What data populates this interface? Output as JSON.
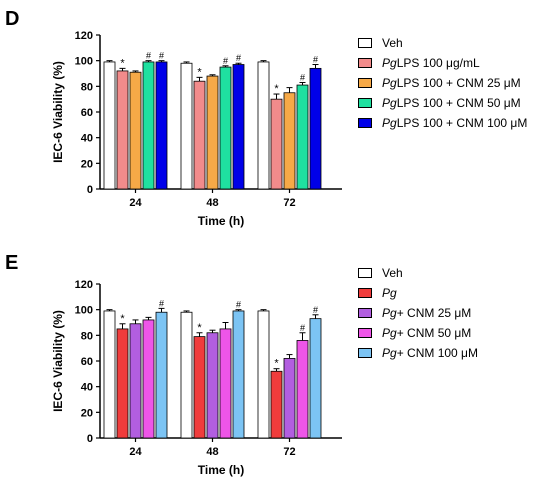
{
  "panels": [
    {
      "letter": "D",
      "chart_data": {
        "type": "bar",
        "ylabel": "IEC-6 Viability (%)",
        "xlabel": "Time (h)",
        "ylim": [
          0,
          120
        ],
        "yticks": [
          0,
          20,
          40,
          60,
          80,
          100,
          120
        ],
        "categories": [
          "24",
          "48",
          "72"
        ],
        "significance_marker": "#",
        "asterisk": "*",
        "series": [
          {
            "name": "Veh",
            "color": "#ffffff",
            "values": [
              99,
              98,
              99
            ],
            "errors": [
              1,
              1,
              1
            ],
            "marks": [
              "",
              "",
              ""
            ]
          },
          {
            "name": "PgLPS 100 μg/mL",
            "color": "#f28b8b",
            "values": [
              92,
              84,
              70
            ],
            "errors": [
              2,
              3,
              4
            ],
            "marks": [
              "*",
              "*",
              "*"
            ]
          },
          {
            "name": "PgLPS 100 + CNM 25 μM",
            "color": "#f6a947",
            "values": [
              91,
              88,
              75
            ],
            "errors": [
              1,
              1,
              4
            ],
            "marks": [
              "",
              "",
              ""
            ]
          },
          {
            "name": "PgLPS 100 + CNM 50 μM",
            "color": "#1fe0a0",
            "values": [
              99,
              95,
              81
            ],
            "errors": [
              1,
              1,
              2
            ],
            "marks": [
              "#",
              "#",
              "#"
            ]
          },
          {
            "name": "PgLPS 100 + CNM 100 μM",
            "color": "#0000e8",
            "values": [
              99,
              97,
              94
            ],
            "errors": [
              1,
              1,
              3
            ],
            "marks": [
              "#",
              "#",
              "#"
            ]
          }
        ],
        "legend": [
          {
            "italic": "",
            "text": "Veh"
          },
          {
            "italic": "Pg",
            "text": "LPS 100 μg/mL"
          },
          {
            "italic": "Pg",
            "text": "LPS 100 + CNM 25 μM"
          },
          {
            "italic": "Pg",
            "text": "LPS 100 + CNM 50 μM"
          },
          {
            "italic": "Pg",
            "text": "LPS 100 + CNM 100 μM"
          }
        ]
      }
    },
    {
      "letter": "E",
      "chart_data": {
        "type": "bar",
        "ylabel": "IEC-6 Viability (%)",
        "xlabel": "Time (h)",
        "ylim": [
          0,
          120
        ],
        "yticks": [
          0,
          20,
          40,
          60,
          80,
          100,
          120
        ],
        "categories": [
          "24",
          "48",
          "72"
        ],
        "significance_marker": "#",
        "asterisk": "*",
        "series": [
          {
            "name": "Veh",
            "color": "#ffffff",
            "values": [
              99,
              98,
              99
            ],
            "errors": [
              1,
              1,
              1
            ],
            "marks": [
              "",
              "",
              ""
            ]
          },
          {
            "name": "Pg",
            "color": "#f03c3c",
            "values": [
              85,
              79,
              52
            ],
            "errors": [
              4,
              3,
              2
            ],
            "marks": [
              "*",
              "*",
              "*"
            ]
          },
          {
            "name": "Pg+ CNM 25 μM",
            "color": "#b25ee0",
            "values": [
              89,
              82,
              62
            ],
            "errors": [
              3,
              2,
              3
            ],
            "marks": [
              "",
              "",
              ""
            ]
          },
          {
            "name": "Pg+ CNM 50 μM",
            "color": "#ee55e8",
            "values": [
              92,
              85,
              76
            ],
            "errors": [
              2,
              5,
              6
            ],
            "marks": [
              "",
              "",
              "#"
            ]
          },
          {
            "name": "Pg+ CNM 100 μM",
            "color": "#7cc4f4",
            "values": [
              98,
              99,
              93
            ],
            "errors": [
              3,
              1,
              3
            ],
            "marks": [
              "#",
              "#",
              "#"
            ]
          }
        ],
        "legend": [
          {
            "italic": "",
            "text": "Veh"
          },
          {
            "italic": "Pg",
            "text": ""
          },
          {
            "italic": "Pg",
            "text": "+ CNM 25 μM"
          },
          {
            "italic": "Pg",
            "text": "+ CNM 50 μM"
          },
          {
            "italic": "Pg",
            "text": "+ CNM 100 μM"
          }
        ]
      }
    }
  ]
}
